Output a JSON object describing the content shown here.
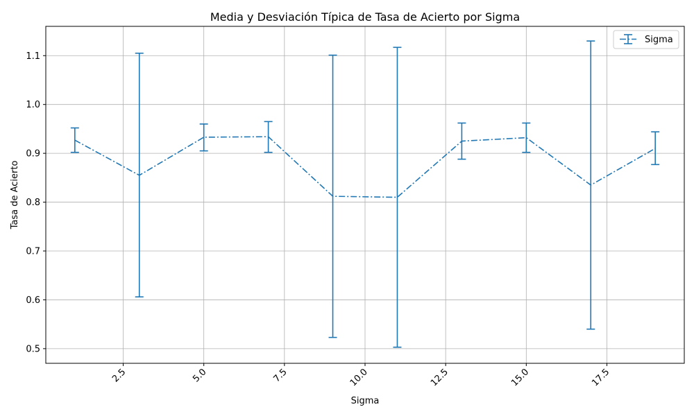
{
  "chart_data": {
    "type": "line",
    "title": "Media y Desviación Típica de Tasa de Acierto por Sigma",
    "xlabel": "Sigma",
    "ylabel": "Tasa de Acierto",
    "xlim": [
      0.1,
      19.9
    ],
    "ylim": [
      0.47,
      1.16
    ],
    "x_ticks": [
      2.5,
      5.0,
      7.5,
      10.0,
      12.5,
      15.0,
      17.5
    ],
    "x_tick_labels": [
      "2.5",
      "5.0",
      "7.5",
      "10.0",
      "12.5",
      "15.0",
      "17.5"
    ],
    "y_ticks": [
      0.5,
      0.6,
      0.7,
      0.8,
      0.9,
      1.0,
      1.1
    ],
    "y_tick_labels": [
      "0.5",
      "0.6",
      "0.7",
      "0.8",
      "0.9",
      "1.0",
      "1.1"
    ],
    "grid": true,
    "legend_position": "top-right",
    "line_style": "dash-dot",
    "error_bars": true,
    "series": [
      {
        "name": "Sigma",
        "color": "#1f77b4",
        "x": [
          1,
          3,
          5,
          7,
          9,
          11,
          13,
          15,
          17,
          19
        ],
        "y": [
          0.927,
          0.855,
          0.933,
          0.934,
          0.812,
          0.81,
          0.925,
          0.932,
          0.835,
          0.91
        ],
        "err_low": [
          0.902,
          0.606,
          0.905,
          0.902,
          0.523,
          0.503,
          0.888,
          0.902,
          0.54,
          0.877
        ],
        "err_high": [
          0.952,
          1.105,
          0.96,
          0.965,
          1.101,
          1.117,
          0.962,
          0.962,
          1.13,
          0.944
        ]
      }
    ]
  }
}
